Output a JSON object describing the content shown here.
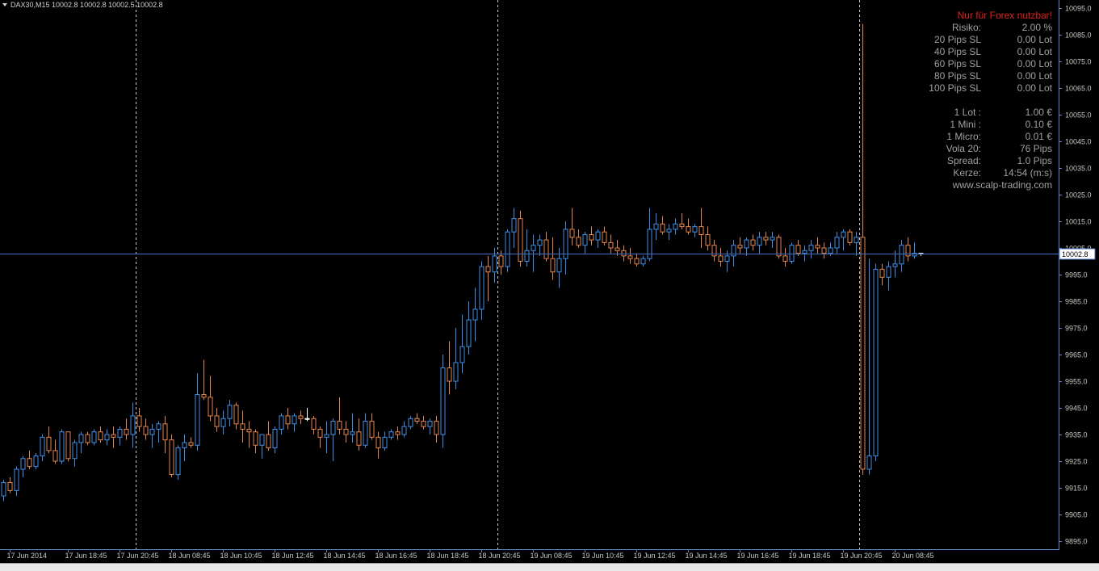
{
  "title": "DAX30,M15  10002.8 10002.8 10002.5 10002.8",
  "info_panel": {
    "warning": "Nur für Forex nutzbar!",
    "rows_top": [
      {
        "label": "Risiko:",
        "value": "2.00 %"
      },
      {
        "label": "20 Pips SL",
        "value": "0.00 Lot"
      },
      {
        "label": "40 Pips SL",
        "value": "0.00 Lot"
      },
      {
        "label": "60 Pips SL",
        "value": "0.00 Lot"
      },
      {
        "label": "80 Pips SL",
        "value": "0.00 Lot"
      },
      {
        "label": "100 Pips SL",
        "value": "0.00 Lot"
      }
    ],
    "rows_bottom": [
      {
        "label": "1 Lot :",
        "value": "1.00 €"
      },
      {
        "label": "1 Mini :",
        "value": "0.10 €"
      },
      {
        "label": "1 Micro:",
        "value": "0.01 €"
      },
      {
        "label": "Vola 20:",
        "value": "76 Pips"
      },
      {
        "label": "Spread:",
        "value": "1.0 Pips"
      },
      {
        "label": "Kerze:",
        "value": "14:54 (m:s)"
      }
    ],
    "website": "www.scalp-trading.com"
  },
  "colors": {
    "background": "#000000",
    "bull": "#3f8fe8",
    "bear": "#e8844a",
    "doji": "#ffffff",
    "axis": "#5f88c8",
    "price_line": "#4070c0",
    "separator": "#c8c8c8",
    "text": "#c8c8c8",
    "warning": "#e02020"
  },
  "chart_data": {
    "type": "candlestick",
    "symbol": "DAX30",
    "timeframe": "M15",
    "current_price": "10002.8",
    "ylim": [
      9892,
      10098
    ],
    "y_ticks": [
      "10095.0",
      "10085.0",
      "10075.0",
      "10065.0",
      "10055.0",
      "10045.0",
      "10035.0",
      "10025.0",
      "10015.0",
      "10005.0",
      "9995.0",
      "9985.0",
      "9975.0",
      "9965.0",
      "9955.0",
      "9945.0",
      "9935.0",
      "9925.0",
      "9915.0",
      "9905.0",
      "9895.0"
    ],
    "x_ticks": [
      {
        "label": "17 Jun 2014",
        "index": 1
      },
      {
        "label": "17 Jun 18:45",
        "index": 10
      },
      {
        "label": "17 Jun 20:45",
        "index": 18
      },
      {
        "label": "18 Jun 08:45",
        "index": 26
      },
      {
        "label": "18 Jun 10:45",
        "index": 34
      },
      {
        "label": "18 Jun 12:45",
        "index": 42
      },
      {
        "label": "18 Jun 14:45",
        "index": 50
      },
      {
        "label": "18 Jun 16:45",
        "index": 58
      },
      {
        "label": "18 Jun 18:45",
        "index": 66
      },
      {
        "label": "18 Jun 20:45",
        "index": 74
      },
      {
        "label": "19 Jun 08:45",
        "index": 82
      },
      {
        "label": "19 Jun 10:45",
        "index": 90
      },
      {
        "label": "19 Jun 12:45",
        "index": 98
      },
      {
        "label": "19 Jun 14:45",
        "index": 106
      },
      {
        "label": "19 Jun 16:45",
        "index": 114
      },
      {
        "label": "19 Jun 18:45",
        "index": 122
      },
      {
        "label": "19 Jun 20:45",
        "index": 130
      },
      {
        "label": "20 Jun 08:45",
        "index": 138
      }
    ],
    "day_separators": [
      20.5,
      76.5,
      132.5
    ],
    "candles": [
      [
        9912,
        9918,
        9910,
        9917
      ],
      [
        9917,
        9919,
        9913,
        9914
      ],
      [
        9914,
        9923,
        9912,
        9922
      ],
      [
        9922,
        9927,
        9919,
        9926
      ],
      [
        9926,
        9929,
        9922,
        9923
      ],
      [
        9923,
        9928,
        9922,
        9927
      ],
      [
        9927,
        9935,
        9925,
        9934
      ],
      [
        9934,
        9938,
        9928,
        9929
      ],
      [
        9929,
        9933,
        9924,
        9925
      ],
      [
        9925,
        9937,
        9924,
        9936
      ],
      [
        9936,
        9936,
        9925,
        9926
      ],
      [
        9926,
        9933,
        9923,
        9932
      ],
      [
        9932,
        9936,
        9928,
        9935
      ],
      [
        9935,
        9936,
        9931,
        9932
      ],
      [
        9932,
        9937,
        9931,
        9936
      ],
      [
        9936,
        9938,
        9932,
        9933
      ],
      [
        9933,
        9937,
        9931,
        9935
      ],
      [
        9935,
        9938,
        9930,
        9934
      ],
      [
        9934,
        9938,
        9931,
        9937
      ],
      [
        9937,
        9941,
        9933,
        9935
      ],
      [
        9935,
        9947,
        9930,
        9942
      ],
      [
        9942,
        9945,
        9936,
        9938
      ],
      [
        9938,
        9941,
        9933,
        9935
      ],
      [
        9935,
        9939,
        9930,
        9937
      ],
      [
        9937,
        9940,
        9932,
        9939
      ],
      [
        9939,
        9942,
        9928,
        9933
      ],
      [
        9933,
        9935,
        9919,
        9920
      ],
      [
        9920,
        9931,
        9918,
        9930
      ],
      [
        9930,
        9935,
        9925,
        9932
      ],
      [
        9932,
        9934,
        9930,
        9931
      ],
      [
        9931,
        9958,
        9929,
        9950
      ],
      [
        9950,
        9963,
        9948,
        9949
      ],
      [
        9949,
        9957,
        9940,
        9942
      ],
      [
        9942,
        9945,
        9936,
        9938
      ],
      [
        9938,
        9944,
        9935,
        9941
      ],
      [
        9941,
        9948,
        9938,
        9946
      ],
      [
        9946,
        9947,
        9937,
        9939
      ],
      [
        9939,
        9944,
        9932,
        9937
      ],
      [
        9937,
        9940,
        9930,
        9936
      ],
      [
        9936,
        9937,
        9928,
        9931
      ],
      [
        9931,
        9935,
        9926,
        9935
      ],
      [
        9935,
        9940,
        9929,
        9930
      ],
      [
        9930,
        9938,
        9928,
        9937
      ],
      [
        9937,
        9943,
        9935,
        9942
      ],
      [
        9942,
        9945,
        9937,
        9939
      ],
      [
        9939,
        9943,
        9936,
        9942
      ],
      [
        9942,
        9944,
        9939,
        9941
      ],
      [
        9941,
        9945,
        9940,
        9941
      ],
      [
        9941,
        9942,
        9935,
        9937
      ],
      [
        9937,
        9938,
        9930,
        9934
      ],
      [
        9934,
        9940,
        9928,
        9935
      ],
      [
        9935,
        9941,
        9925,
        9940
      ],
      [
        9940,
        9949,
        9935,
        9937
      ],
      [
        9937,
        9940,
        9932,
        9935
      ],
      [
        9935,
        9943,
        9932,
        9936
      ],
      [
        9936,
        9941,
        9929,
        9931
      ],
      [
        9931,
        9943,
        9930,
        9940
      ],
      [
        9940,
        9943,
        9933,
        9934
      ],
      [
        9934,
        9936,
        9926,
        9930
      ],
      [
        9930,
        9936,
        9929,
        9934
      ],
      [
        9934,
        9937,
        9933,
        9936
      ],
      [
        9936,
        9938,
        9933,
        9935
      ],
      [
        9935,
        9940,
        9934,
        9938
      ],
      [
        9938,
        9942,
        9937,
        9941
      ],
      [
        9941,
        9943,
        9939,
        9940
      ],
      [
        9940,
        9942,
        9937,
        9938
      ],
      [
        9938,
        9941,
        9935,
        9940
      ],
      [
        9940,
        9942,
        9932,
        9935
      ],
      [
        9935,
        9965,
        9930,
        9960
      ],
      [
        9960,
        9970,
        9950,
        9955
      ],
      [
        9955,
        9975,
        9952,
        9962
      ],
      [
        9962,
        9980,
        9958,
        9968
      ],
      [
        9968,
        9985,
        9965,
        9978
      ],
      [
        9978,
        9990,
        9970,
        9982
      ],
      [
        9982,
        10000,
        9978,
        9998
      ],
      [
        9998,
        10002,
        9985,
        9996
      ],
      [
        9996,
        10005,
        9992,
        10002
      ],
      [
        10002,
        10004,
        9995,
        9998
      ],
      [
        9998,
        10012,
        9996,
        10011
      ],
      [
        10011,
        10020,
        10005,
        10016
      ],
      [
        10016,
        10019,
        9998,
        10000
      ],
      [
        10000,
        10012,
        9998,
        10004
      ],
      [
        10004,
        10010,
        9996,
        10006
      ],
      [
        10006,
        10010,
        10002,
        10008
      ],
      [
        10008,
        10011,
        10000,
        10001
      ],
      [
        10001,
        10009,
        9993,
        9996
      ],
      [
        9996,
        10005,
        9990,
        10001
      ],
      [
        10001,
        10015,
        9995,
        10012
      ],
      [
        10012,
        10020,
        10006,
        10009
      ],
      [
        10009,
        10012,
        10005,
        10006
      ],
      [
        10006,
        10011,
        10003,
        10010
      ],
      [
        10010,
        10013,
        10006,
        10008
      ],
      [
        10008,
        10012,
        10005,
        10011
      ],
      [
        10011,
        10013,
        10006,
        10007
      ],
      [
        10007,
        10010,
        10003,
        10005
      ],
      [
        10005,
        10008,
        10002,
        10004
      ],
      [
        10004,
        10006,
        10000,
        10002
      ],
      [
        10002,
        10005,
        9999,
        10001
      ],
      [
        10001,
        10003,
        9998,
        9999
      ],
      [
        9999,
        10002,
        9998,
        10001
      ],
      [
        10001,
        10020,
        10000,
        10012
      ],
      [
        10012,
        10018,
        10008,
        10014
      ],
      [
        10014,
        10017,
        10010,
        10011
      ],
      [
        10011,
        10014,
        10008,
        10012
      ],
      [
        10012,
        10016,
        10010,
        10014
      ],
      [
        10014,
        10018,
        10012,
        10013
      ],
      [
        10013,
        10016,
        10010,
        10011
      ],
      [
        10011,
        10014,
        10009,
        10013
      ],
      [
        10013,
        10020,
        10005,
        10010
      ],
      [
        10010,
        10013,
        10004,
        10006
      ],
      [
        10006,
        10008,
        10000,
        10002
      ],
      [
        10002,
        10005,
        9998,
        10000
      ],
      [
        10000,
        10004,
        9996,
        10002
      ],
      [
        10002,
        10008,
        9998,
        10006
      ],
      [
        10006,
        10009,
        10003,
        10005
      ],
      [
        10005,
        10009,
        10002,
        10008
      ],
      [
        10008,
        10010,
        10004,
        10006
      ],
      [
        10006,
        10011,
        10003,
        10009
      ],
      [
        10009,
        10011,
        10006,
        10008
      ],
      [
        10008,
        10011,
        10005,
        10009
      ],
      [
        10009,
        10010,
        10001,
        10002
      ],
      [
        10002,
        10005,
        9998,
        10000
      ],
      [
        10000,
        10007,
        9999,
        10006
      ],
      [
        10006,
        10008,
        10002,
        10003
      ],
      [
        10003,
        10006,
        10000,
        10004
      ],
      [
        10004,
        10008,
        10001,
        10006
      ],
      [
        10006,
        10009,
        10003,
        10005
      ],
      [
        10005,
        10007,
        10001,
        10003
      ],
      [
        10003,
        10007,
        10002,
        10005
      ],
      [
        10005,
        10011,
        10003,
        10009
      ],
      [
        10009,
        10012,
        10004,
        10011
      ],
      [
        10011,
        10012,
        10006,
        10007
      ],
      [
        10007,
        10011,
        10002,
        10009
      ],
      [
        10009,
        10089,
        9920,
        9922
      ],
      [
        9922,
        10001,
        9920,
        9927
      ],
      [
        9927,
        9999,
        9925,
        9997
      ],
      [
        9997,
        9999,
        9991,
        9994
      ],
      [
        9994,
        10000,
        9989,
        9998
      ],
      [
        9998,
        10004,
        9994,
        9999
      ],
      [
        9999,
        10008,
        9996,
        10006
      ],
      [
        10006,
        10009,
        10000,
        10002
      ],
      [
        10002,
        10007,
        10001,
        10003
      ],
      [
        10003,
        10003,
        10002,
        10002.8
      ]
    ]
  }
}
